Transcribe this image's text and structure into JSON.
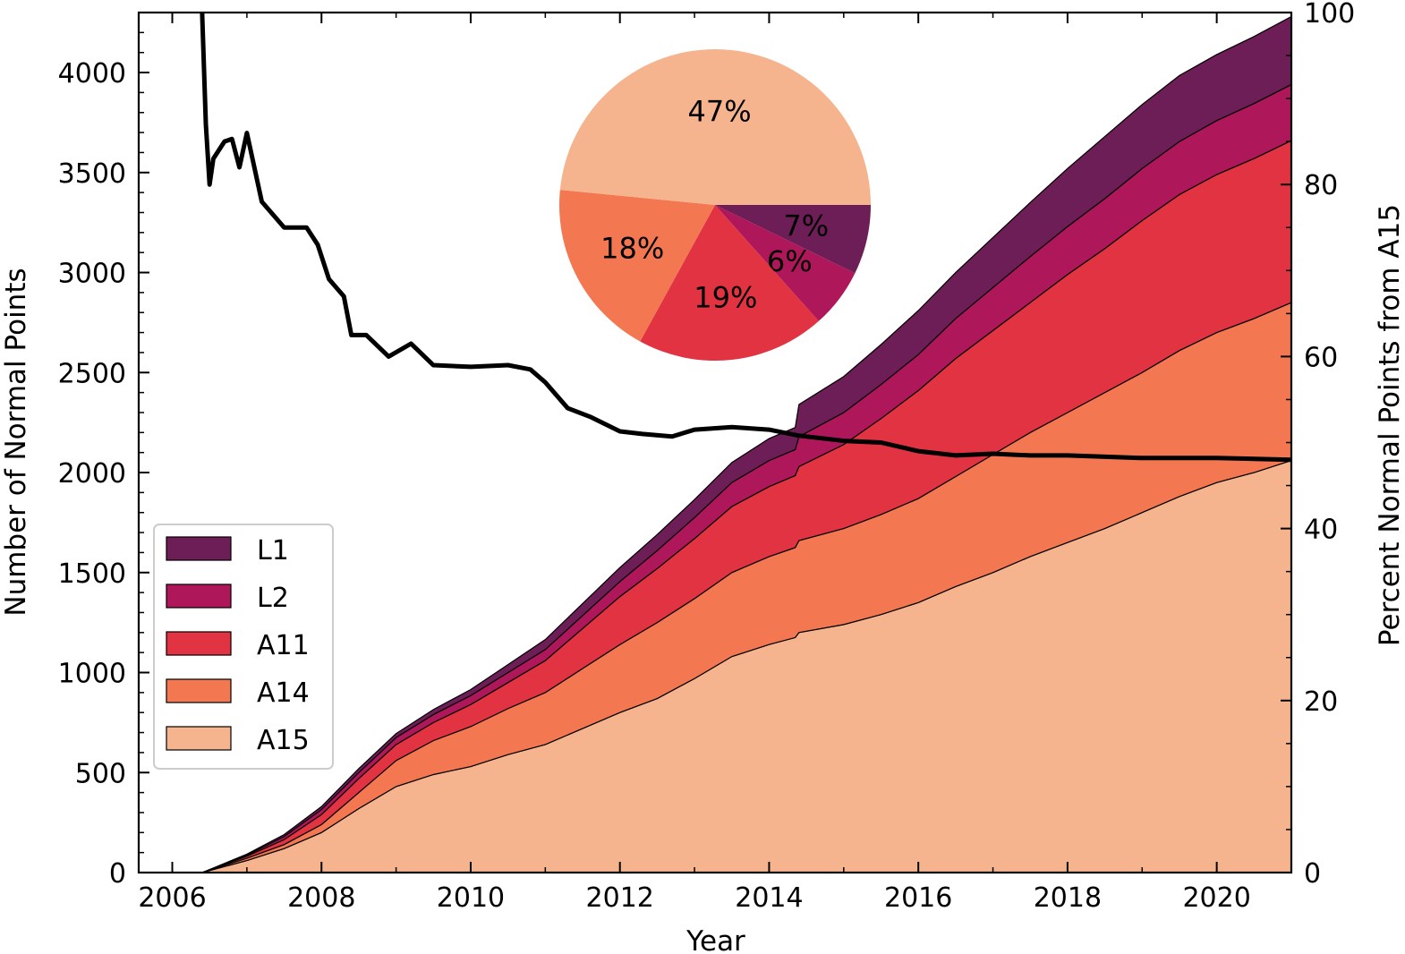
{
  "chart_data": {
    "type": "area",
    "stacking": "stacked",
    "xlabel": "Year",
    "ylabel": "Number of Normal Points",
    "y2label": "Percent Normal Points from A15",
    "xlim": [
      2005.55,
      2021.0
    ],
    "ylim": [
      0,
      4300
    ],
    "y2lim": [
      0,
      100
    ],
    "x_ticks": [
      2006,
      2008,
      2010,
      2012,
      2014,
      2016,
      2018,
      2020
    ],
    "y_ticks": [
      0,
      500,
      1000,
      1500,
      2000,
      2500,
      3000,
      3500,
      4000
    ],
    "y2_ticks": [
      0,
      20,
      40,
      60,
      80,
      100
    ],
    "x": [
      2006.4,
      2007.0,
      2007.5,
      2008.0,
      2008.5,
      2009.0,
      2009.5,
      2010.0,
      2010.5,
      2011.0,
      2011.5,
      2012.0,
      2012.5,
      2013.0,
      2013.5,
      2014.0,
      2014.35,
      2014.4,
      2015.0,
      2015.5,
      2016.0,
      2016.5,
      2017.0,
      2017.5,
      2018.0,
      2018.5,
      2019.0,
      2019.5,
      2020.0,
      2020.5,
      2021.0
    ],
    "series": [
      {
        "name": "A15",
        "values": [
          0,
          60,
          120,
          200,
          320,
          430,
          490,
          530,
          590,
          640,
          720,
          800,
          870,
          970,
          1080,
          1140,
          1175,
          1200,
          1240,
          1290,
          1350,
          1430,
          1500,
          1580,
          1650,
          1720,
          1800,
          1880,
          1950,
          2000,
          2060
        ]
      },
      {
        "name": "A14",
        "values": [
          0,
          12,
          20,
          40,
          80,
          130,
          170,
          200,
          230,
          260,
          300,
          340,
          380,
          400,
          420,
          440,
          450,
          460,
          480,
          500,
          520,
          550,
          590,
          620,
          650,
          680,
          700,
          730,
          750,
          770,
          790
        ]
      },
      {
        "name": "A11",
        "values": [
          0,
          10,
          25,
          50,
          70,
          80,
          90,
          110,
          130,
          160,
          200,
          240,
          270,
          300,
          330,
          350,
          360,
          370,
          420,
          480,
          540,
          590,
          620,
          650,
          690,
          720,
          760,
          780,
          790,
          800,
          810
        ]
      },
      {
        "name": "L2",
        "values": [
          0,
          5,
          15,
          25,
          30,
          35,
          40,
          45,
          50,
          55,
          65,
          75,
          90,
          105,
          120,
          130,
          130,
          150,
          160,
          170,
          180,
          200,
          215,
          230,
          240,
          250,
          260,
          265,
          270,
          275,
          280
        ]
      },
      {
        "name": "L1",
        "values": [
          0,
          5,
          10,
          15,
          20,
          20,
          25,
          30,
          40,
          50,
          60,
          70,
          80,
          90,
          100,
          110,
          110,
          160,
          180,
          200,
          220,
          230,
          250,
          270,
          290,
          310,
          320,
          330,
          330,
          335,
          340
        ]
      }
    ],
    "line_series": {
      "name": "Percent Normal Points from A15",
      "axis": "right",
      "x": [
        2006.4,
        2006.45,
        2006.5,
        2006.55,
        2006.7,
        2006.8,
        2006.9,
        2007.0,
        2007.1,
        2007.2,
        2007.3,
        2007.5,
        2007.8,
        2007.95,
        2008.1,
        2008.3,
        2008.4,
        2008.6,
        2008.9,
        2009.2,
        2009.5,
        2010.0,
        2010.5,
        2010.8,
        2011.0,
        2011.3,
        2011.6,
        2012.0,
        2012.3,
        2012.7,
        2013.0,
        2013.5,
        2014.0,
        2014.4,
        2015.0,
        2015.5,
        2016.0,
        2016.5,
        2017.0,
        2017.5,
        2018.0,
        2019.0,
        2020.0,
        2021.0
      ],
      "values": [
        100,
        87,
        80,
        83,
        85,
        85.3,
        82,
        86,
        82,
        78,
        77,
        75,
        75,
        73,
        69,
        67,
        62.5,
        62.5,
        60,
        61.5,
        59,
        58.8,
        59,
        58.5,
        57,
        54,
        53,
        51.3,
        51,
        50.7,
        51.5,
        51.8,
        51.5,
        50.8,
        50.2,
        50,
        49,
        48.5,
        48.7,
        48.5,
        48.5,
        48.2,
        48.2,
        48
      ]
    },
    "legend": {
      "position": "center-left",
      "entries": [
        "L1",
        "L2",
        "A11",
        "A14",
        "A15"
      ]
    },
    "pie": {
      "type": "pie",
      "position": "top-center inset",
      "labels": [
        "L1",
        "L2",
        "A11",
        "A14",
        "A15"
      ],
      "values": [
        7,
        6,
        19,
        18,
        47
      ],
      "display": [
        "7%",
        "6%",
        "19%",
        "18%",
        "47%"
      ]
    },
    "colors": {
      "L1": "#6d1e57",
      "L2": "#ae1759",
      "A11": "#e13342",
      "A14": "#f37751",
      "A15": "#f6b48e",
      "line": "#000000"
    }
  }
}
